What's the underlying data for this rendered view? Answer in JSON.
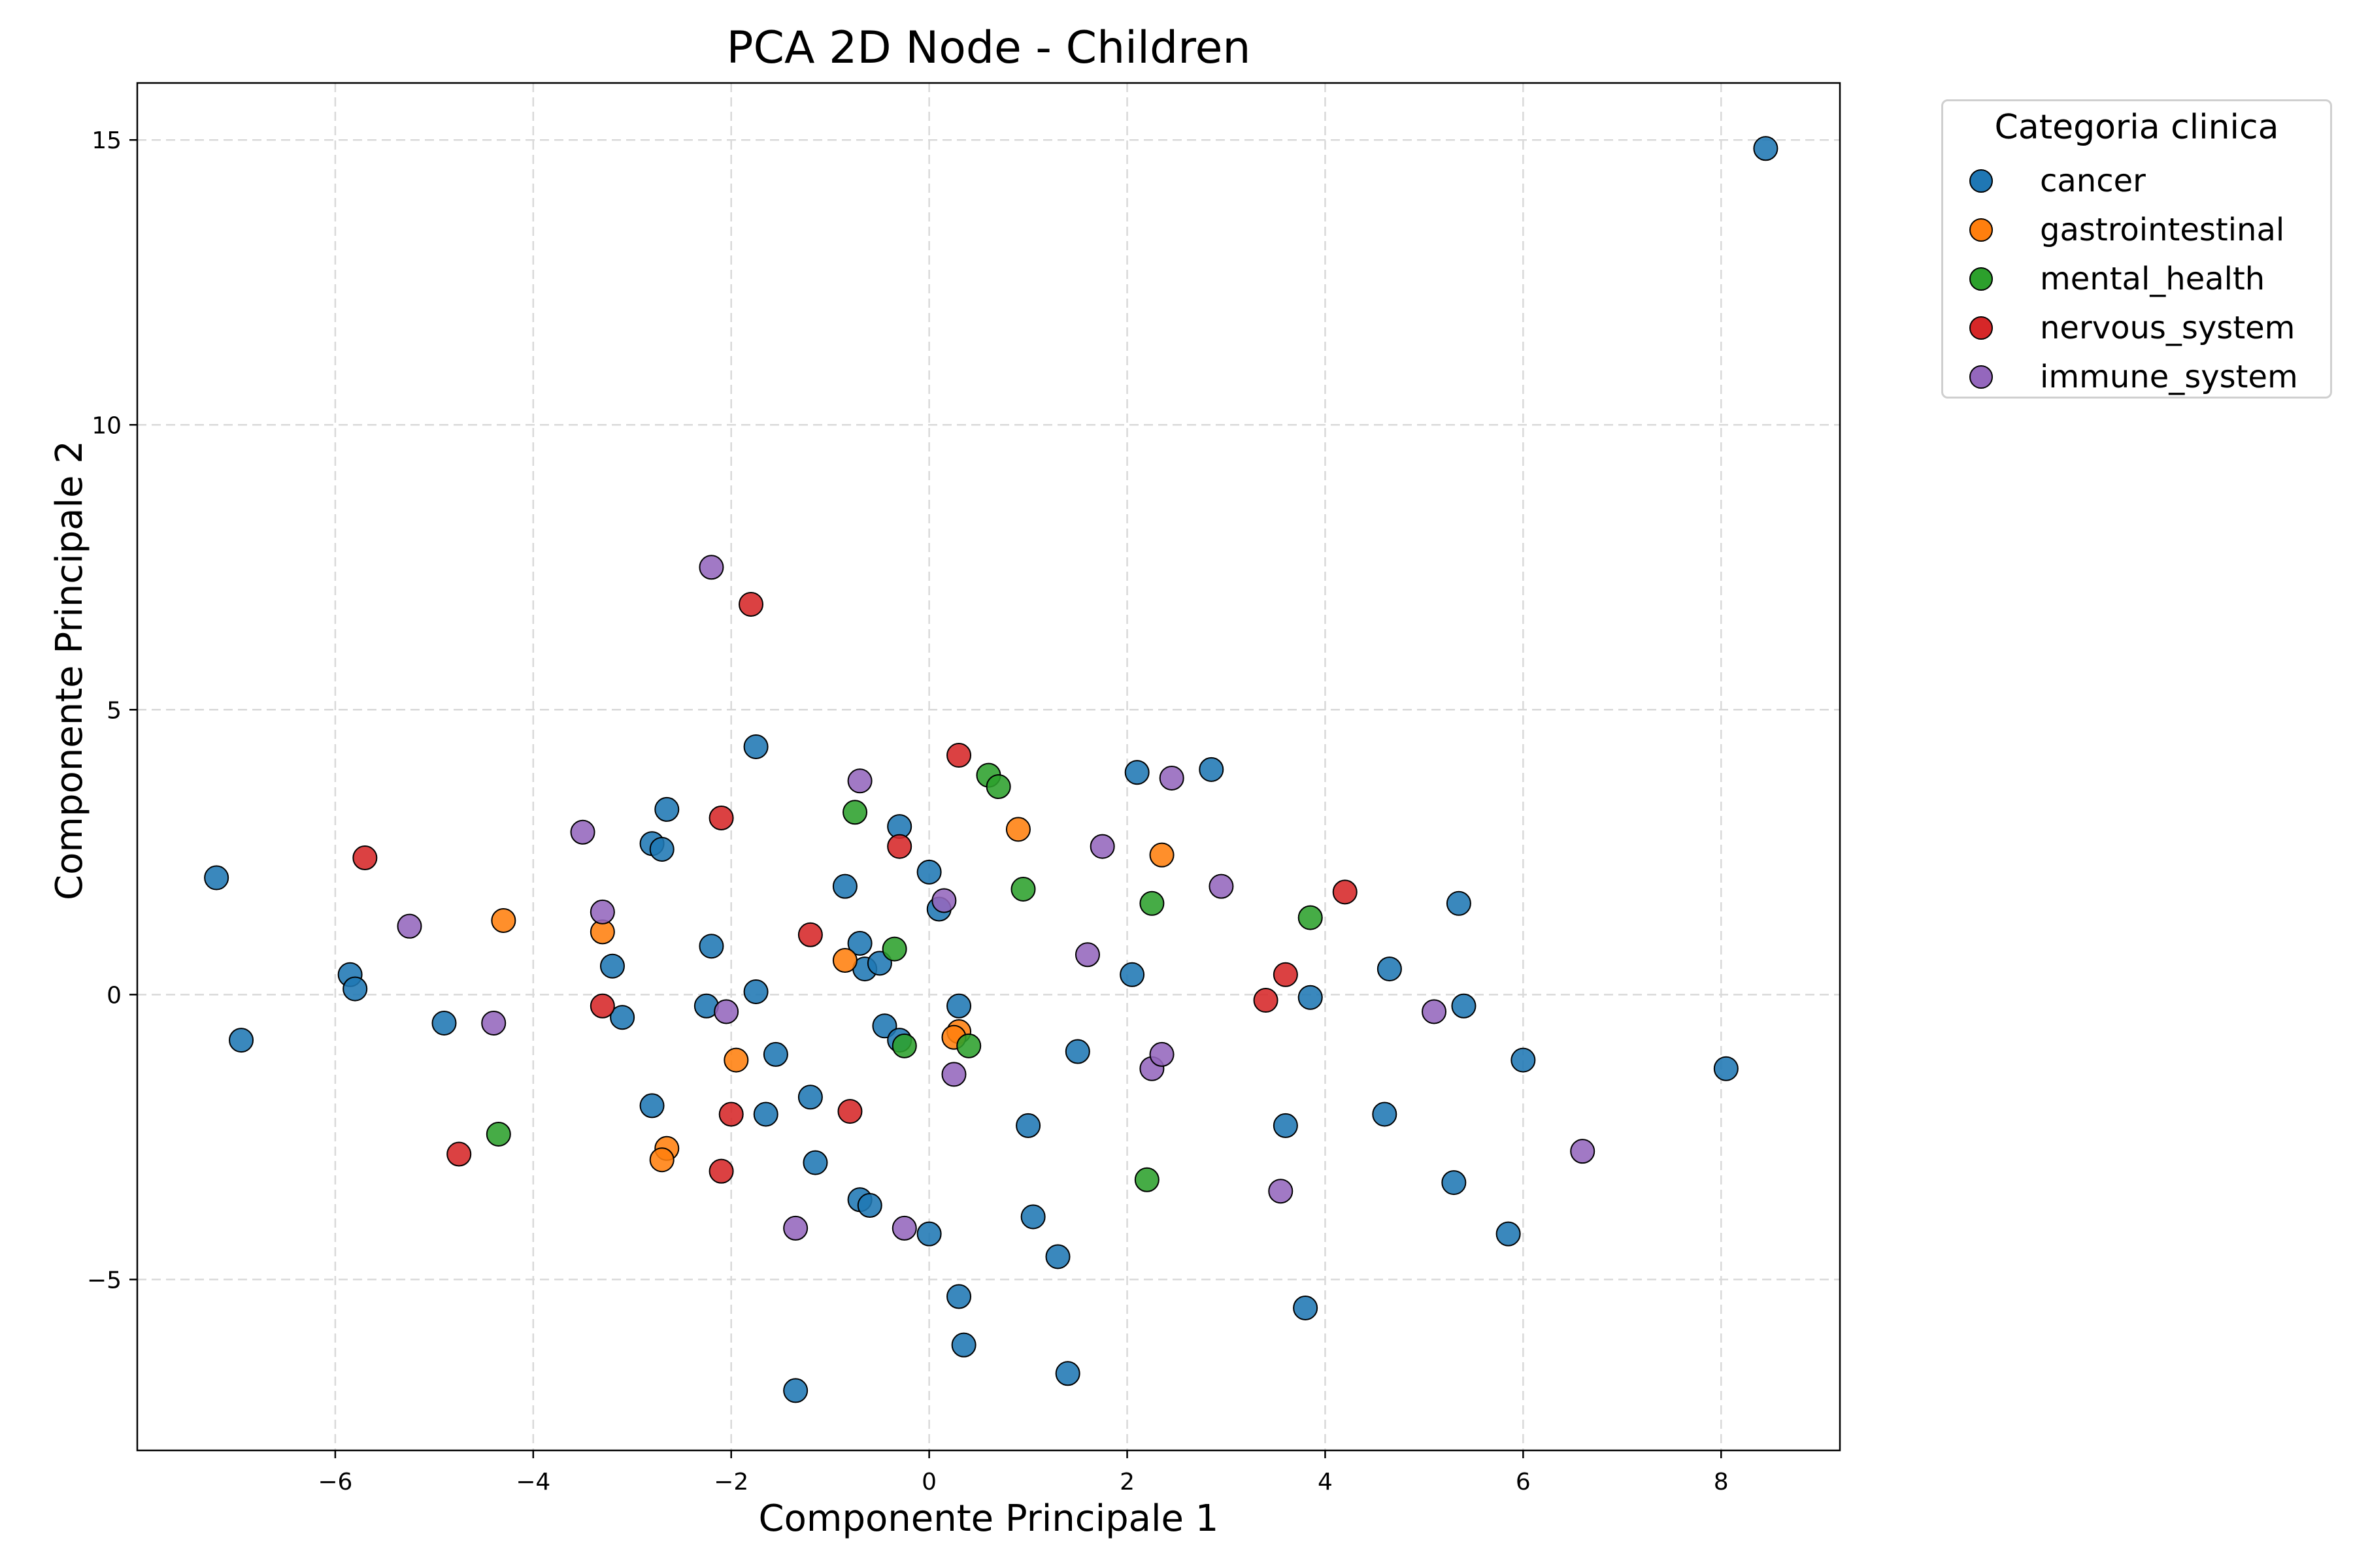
{
  "chart_data": {
    "type": "scatter",
    "title": "PCA 2D Node -  Children",
    "xlabel": "Componente Principale 1",
    "ylabel": "Componente Principale 2",
    "xlim": [
      -8.0,
      9.2
    ],
    "ylim": [
      -8.0,
      16.0
    ],
    "xticks": [
      -6,
      -4,
      -2,
      0,
      2,
      4,
      6,
      8
    ],
    "yticks": [
      -5,
      0,
      5,
      10,
      15
    ],
    "xtick_labels": [
      "−6",
      "−4",
      "−2",
      "0",
      "2",
      "4",
      "6",
      "8"
    ],
    "ytick_labels": [
      "−5",
      "0",
      "5",
      "10",
      "15"
    ],
    "grid": true,
    "legend_title": "Categoria clinica",
    "legend_position": "outside-top-right",
    "series": [
      {
        "name": "cancer",
        "color": "#1f77b4",
        "points": [
          [
            8.45,
            14.85
          ],
          [
            -7.2,
            2.05
          ],
          [
            -6.95,
            -0.8
          ],
          [
            -5.85,
            0.35
          ],
          [
            -5.8,
            0.1
          ],
          [
            -4.9,
            -0.5
          ],
          [
            -3.2,
            0.5
          ],
          [
            -3.1,
            -0.4
          ],
          [
            -2.8,
            2.65
          ],
          [
            -2.7,
            2.55
          ],
          [
            -2.65,
            3.25
          ],
          [
            -2.8,
            -1.95
          ],
          [
            -2.2,
            0.85
          ],
          [
            -2.25,
            -0.2
          ],
          [
            -1.75,
            4.35
          ],
          [
            -1.75,
            0.05
          ],
          [
            -1.65,
            -2.1
          ],
          [
            -1.55,
            -1.05
          ],
          [
            -1.2,
            -1.8
          ],
          [
            -1.15,
            -2.95
          ],
          [
            -1.35,
            -6.95
          ],
          [
            -0.85,
            1.9
          ],
          [
            -0.7,
            0.9
          ],
          [
            -0.65,
            0.45
          ],
          [
            -0.5,
            0.55
          ],
          [
            -0.45,
            -0.55
          ],
          [
            -0.3,
            -0.8
          ],
          [
            -0.3,
            2.95
          ],
          [
            -0.7,
            -3.6
          ],
          [
            -0.6,
            -3.7
          ],
          [
            0.0,
            2.15
          ],
          [
            0.1,
            1.5
          ],
          [
            0.3,
            -0.2
          ],
          [
            0.0,
            -4.2
          ],
          [
            0.3,
            -5.3
          ],
          [
            0.35,
            -6.15
          ],
          [
            1.0,
            -2.3
          ],
          [
            1.05,
            -3.9
          ],
          [
            1.3,
            -4.6
          ],
          [
            1.4,
            -6.65
          ],
          [
            1.5,
            -1.0
          ],
          [
            2.05,
            0.35
          ],
          [
            2.1,
            3.9
          ],
          [
            2.85,
            3.95
          ],
          [
            3.6,
            -2.3
          ],
          [
            3.8,
            -5.5
          ],
          [
            3.85,
            -0.05
          ],
          [
            4.65,
            0.45
          ],
          [
            4.6,
            -2.1
          ],
          [
            5.3,
            -3.3
          ],
          [
            5.35,
            1.6
          ],
          [
            5.4,
            -0.2
          ],
          [
            5.85,
            -4.2
          ],
          [
            6.0,
            -1.15
          ],
          [
            8.05,
            -1.3
          ]
        ]
      },
      {
        "name": "gastrointestinal",
        "color": "#ff7f0e",
        "points": [
          [
            -4.3,
            1.3
          ],
          [
            -3.3,
            1.1
          ],
          [
            -2.65,
            -2.7
          ],
          [
            -2.7,
            -2.9
          ],
          [
            -1.95,
            -1.15
          ],
          [
            -0.85,
            0.6
          ],
          [
            0.3,
            -0.65
          ],
          [
            0.25,
            -0.75
          ],
          [
            0.9,
            2.9
          ],
          [
            2.35,
            2.45
          ]
        ]
      },
      {
        "name": "mental_health",
        "color": "#2ca02c",
        "points": [
          [
            -4.35,
            -2.45
          ],
          [
            -0.75,
            3.2
          ],
          [
            -0.35,
            0.8
          ],
          [
            -0.25,
            -0.9
          ],
          [
            0.4,
            -0.9
          ],
          [
            0.6,
            3.85
          ],
          [
            0.7,
            3.65
          ],
          [
            0.95,
            1.85
          ],
          [
            2.25,
            1.6
          ],
          [
            2.2,
            -3.25
          ],
          [
            3.85,
            1.35
          ]
        ]
      },
      {
        "name": "nervous_system",
        "color": "#d62728",
        "points": [
          [
            -5.7,
            2.4
          ],
          [
            -4.75,
            -2.8
          ],
          [
            -3.3,
            -0.2
          ],
          [
            -2.1,
            3.1
          ],
          [
            -2.1,
            -3.1
          ],
          [
            -2.0,
            -2.1
          ],
          [
            -1.8,
            6.85
          ],
          [
            -1.2,
            1.05
          ],
          [
            -0.8,
            -2.05
          ],
          [
            -0.3,
            2.6
          ],
          [
            0.3,
            4.2
          ],
          [
            3.4,
            -0.1
          ],
          [
            3.6,
            0.35
          ],
          [
            4.2,
            1.8
          ]
        ]
      },
      {
        "name": "immune_system",
        "color": "#9467bd",
        "points": [
          [
            -5.25,
            1.2
          ],
          [
            -4.4,
            -0.5
          ],
          [
            -3.5,
            2.85
          ],
          [
            -3.3,
            1.45
          ],
          [
            -2.2,
            7.5
          ],
          [
            -2.05,
            -0.3
          ],
          [
            -1.35,
            -4.1
          ],
          [
            -0.7,
            3.75
          ],
          [
            0.15,
            1.65
          ],
          [
            -0.25,
            -4.1
          ],
          [
            0.25,
            -1.4
          ],
          [
            1.6,
            0.7
          ],
          [
            1.75,
            2.6
          ],
          [
            2.25,
            -1.3
          ],
          [
            2.35,
            -1.05
          ],
          [
            2.45,
            3.8
          ],
          [
            2.95,
            1.9
          ],
          [
            3.55,
            -3.45
          ],
          [
            5.1,
            -0.3
          ],
          [
            6.6,
            -2.75
          ]
        ]
      }
    ]
  }
}
